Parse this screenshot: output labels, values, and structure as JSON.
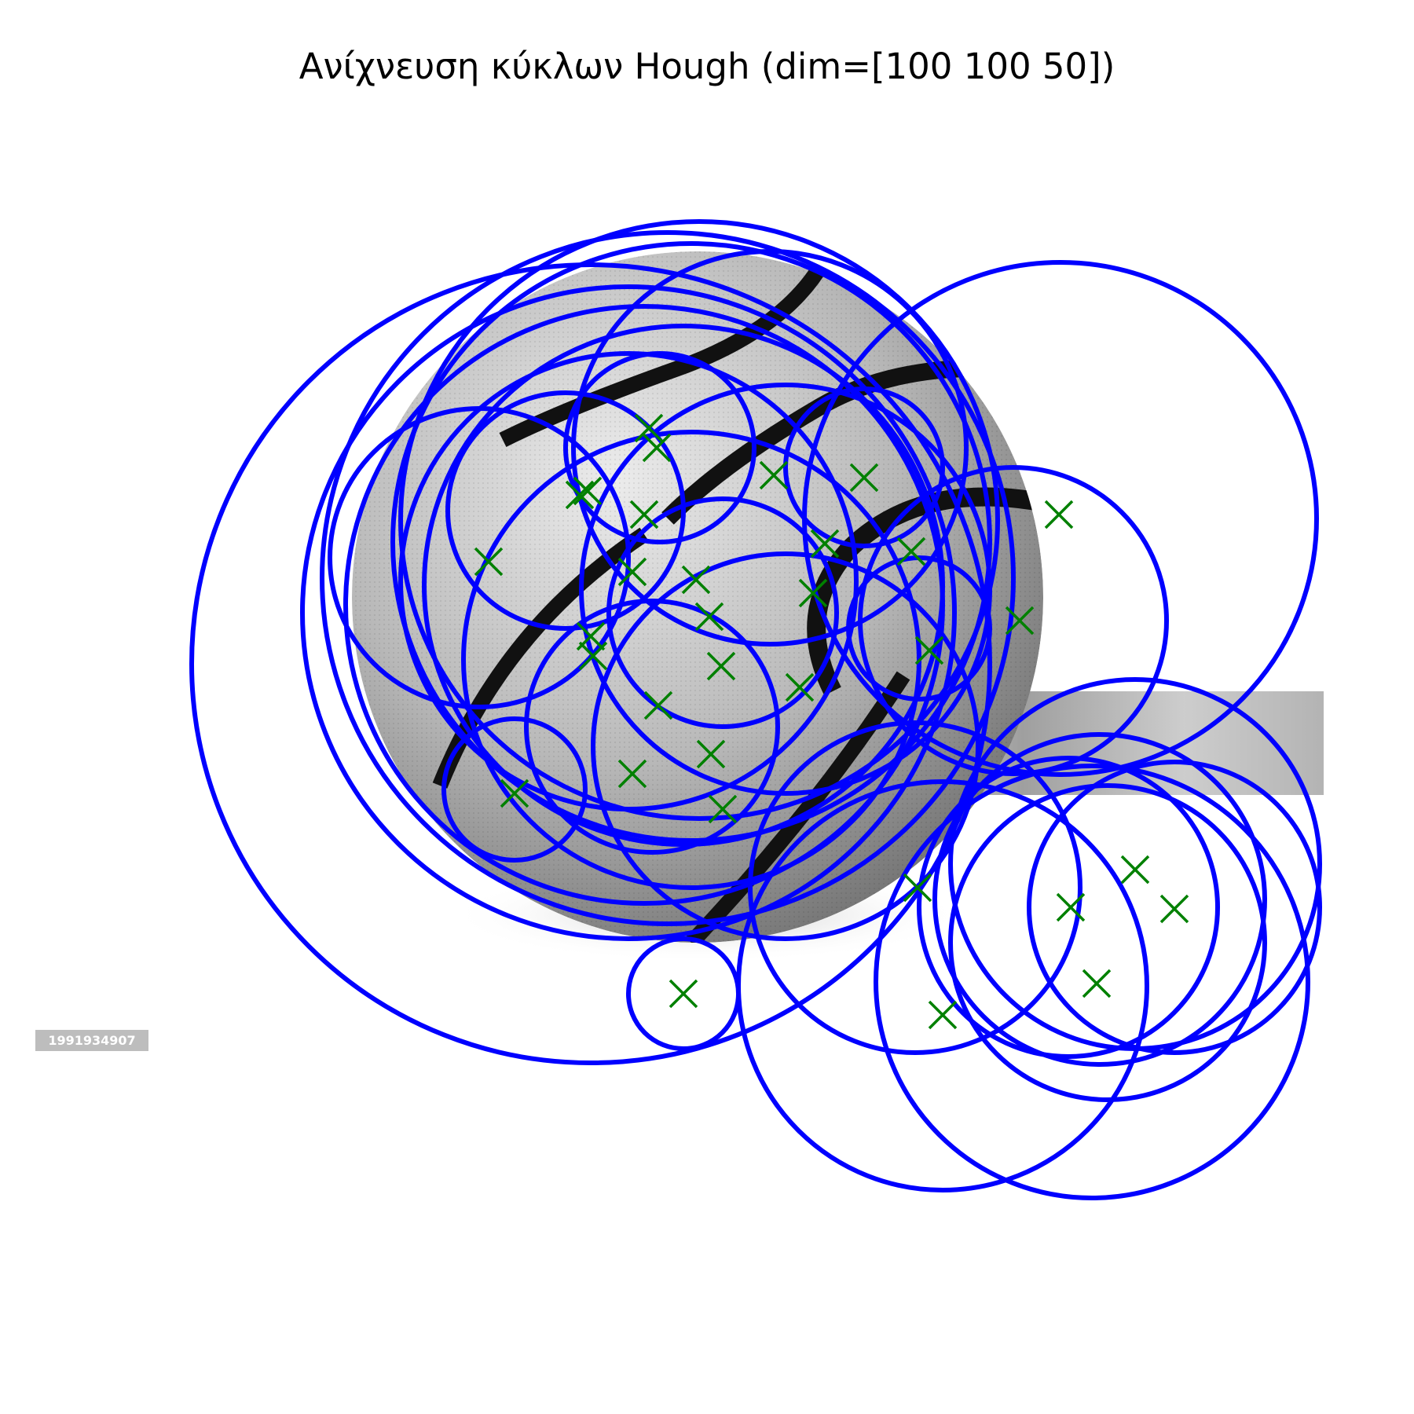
{
  "title": "Ανίχνευση κύκλων Hough (dim=[100 100  50])",
  "image": {
    "subject": "basketball",
    "stock_id": "1991934907"
  },
  "colors": {
    "circle": "#0000ff",
    "marker": "#008000",
    "ball_light": "#e6e6e6",
    "ball_dark": "#7a7a7a",
    "seam": "#111111",
    "watermark_band": "#b0b0b0"
  }
}
